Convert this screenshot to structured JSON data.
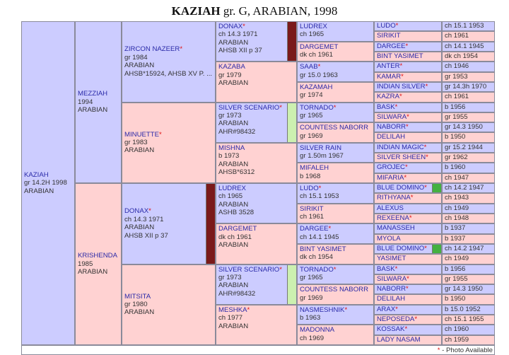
{
  "title": {
    "name": "KAZIAH",
    "detail": "gr. G, ARABIAN, 1998"
  },
  "footer": {
    "mark": "*",
    "text": "- Photo Available"
  },
  "generations": [
    [
      {
        "name": "KAZIAH",
        "lines": [
          "gr 14.2H 1998",
          "ARABIAN"
        ]
      }
    ],
    [
      {
        "name": "MEZZIAH",
        "lines": [
          "1994",
          "ARABIAN"
        ]
      },
      {
        "name": "KRISHENDA",
        "lines": [
          "1985",
          "ARABIAN"
        ]
      }
    ],
    [
      {
        "name": "ZIRCON NAZEER",
        "mark": "*",
        "lines": [
          "gr 1984",
          "ARABIAN",
          "AHSB*15924, AHSB XV P. ..."
        ]
      },
      {
        "name": "MINUETTE",
        "mark": "*",
        "lines": [
          "gr 1983",
          "ARABIAN"
        ]
      },
      {
        "name": "DONAX",
        "mark": "*",
        "lines": [
          "ch 14.3 1971",
          "ARABIAN",
          "AHSB XII p 37"
        ],
        "strip": "#7a1a1a"
      },
      {
        "name": "MITSITA",
        "lines": [
          "gr 1980",
          "ARABIAN"
        ]
      }
    ],
    [
      {
        "name": "DONAX",
        "mark": "*",
        "lines": [
          "ch 14.3 1971",
          "ARABIAN",
          "AHSB XII p 37"
        ],
        "strip": "#7a1a1a"
      },
      {
        "name": "KAZABA",
        "lines": [
          "gr 1979",
          "ARABIAN"
        ]
      },
      {
        "name": "SILVER SCENARIO",
        "mark": "*",
        "lines": [
          "gr 1973",
          "ARABIAN",
          "AHR#98432"
        ],
        "strip": "#ccf0b0"
      },
      {
        "name": "MISHNA",
        "lines": [
          "b 1973",
          "ARABIAN",
          "AHSB*6312"
        ]
      },
      {
        "name": "LUDREX",
        "lines": [
          "ch 1965",
          "ARABIAN",
          "ASHB 3528"
        ]
      },
      {
        "name": "DARGEMET",
        "lines": [
          "dk ch 1961",
          "ARABIAN"
        ]
      },
      {
        "name": "SILVER SCENARIO",
        "mark": "*",
        "lines": [
          "gr 1973",
          "ARABIAN",
          "AHR#98432"
        ],
        "strip": "#ccf0b0"
      },
      {
        "name": "MESHKA",
        "mark": "*",
        "lines": [
          "ch 1977",
          "ARABIAN"
        ]
      }
    ],
    [
      {
        "name": "LUDREX",
        "lines": [
          "ch 1965"
        ]
      },
      {
        "name": "DARGEMET",
        "lines": [
          "dk ch 1961"
        ]
      },
      {
        "name": "SAAB",
        "mark": "*",
        "lines": [
          "gr 15.0 1963"
        ]
      },
      {
        "name": "KAZAMAH",
        "lines": [
          "gr 1974"
        ]
      },
      {
        "name": "TORNADO",
        "mark": "*",
        "lines": [
          "gr 1965"
        ]
      },
      {
        "name": "COUNTESS NABORR",
        "lines": [
          "gr 1969"
        ]
      },
      {
        "name": "SILVER RAIN",
        "lines": [
          "gr 1.50m 1967"
        ]
      },
      {
        "name": "MIFALEH",
        "lines": [
          "b 1968"
        ]
      },
      {
        "name": "LUDO",
        "mark": "*",
        "lines": [
          "ch 15.1 1953"
        ]
      },
      {
        "name": "SIRIKIT",
        "lines": [
          "ch 1961"
        ]
      },
      {
        "name": "DARGEE",
        "mark": "*",
        "lines": [
          "ch 14.1 1945"
        ]
      },
      {
        "name": "BINT YASIMET",
        "lines": [
          "dk ch 1954"
        ]
      },
      {
        "name": "TORNADO",
        "mark": "*",
        "lines": [
          "gr 1965"
        ]
      },
      {
        "name": "COUNTESS NABORR",
        "lines": [
          "gr 1969"
        ]
      },
      {
        "name": "NASMESHNIK",
        "mark": "*",
        "lines": [
          "b 1963"
        ]
      },
      {
        "name": "MADONNA",
        "lines": [
          "ch 1969"
        ]
      }
    ],
    [
      {
        "name": "LUDO",
        "mark": "*",
        "lines": [
          "ch 15.1 1953"
        ]
      },
      {
        "name": "SIRIKIT",
        "lines": [
          "ch 1961"
        ]
      },
      {
        "name": "DARGEE",
        "mark": "*",
        "lines": [
          "ch 14.1 1945"
        ]
      },
      {
        "name": "BINT YASIMET",
        "lines": [
          "dk ch 1954"
        ]
      },
      {
        "name": "ANTER",
        "mark": "*",
        "lines": [
          "ch 1946"
        ]
      },
      {
        "name": "KAMAR",
        "mark": "*",
        "lines": [
          "gr 1953"
        ]
      },
      {
        "name": "INDIAN SILVER",
        "mark": "*",
        "lines": [
          "gr 14.3h 1970"
        ]
      },
      {
        "name": "KAZRA",
        "mark": "*",
        "lines": [
          "ch 1961"
        ]
      },
      {
        "name": "BASK",
        "mark": "*",
        "lines": [
          "b 1956"
        ]
      },
      {
        "name": "SILWARA",
        "mark": "*",
        "lines": [
          "gr 1955"
        ]
      },
      {
        "name": "NABORR",
        "mark": "*",
        "lines": [
          "gr 14.3 1950"
        ]
      },
      {
        "name": "DELILAH",
        "lines": [
          "b 1950"
        ]
      },
      {
        "name": "INDIAN MAGIC",
        "mark": "*",
        "lines": [
          "gr 15.2 1944"
        ]
      },
      {
        "name": "SILVER SHEEN",
        "mark": "*",
        "lines": [
          "gr 1962"
        ]
      },
      {
        "name": "GROJEC",
        "mark": "*",
        "lines": [
          "b 1960"
        ]
      },
      {
        "name": "MIFARIA",
        "mark": "*",
        "lines": [
          "ch 1947"
        ]
      },
      {
        "name": "BLUE DOMINO",
        "mark": "*",
        "lines": [
          "ch 14.2 1947"
        ],
        "strip": "#44b040"
      },
      {
        "name": "RITHYANA",
        "mark": "*",
        "lines": [
          "ch 1943"
        ]
      },
      {
        "name": "ALEXUS",
        "lines": [
          "ch 1949"
        ]
      },
      {
        "name": "REXEENA",
        "mark": "*",
        "lines": [
          "ch 1948"
        ]
      },
      {
        "name": "MANASSEH",
        "lines": [
          "b 1937"
        ]
      },
      {
        "name": "MYOLA",
        "lines": [
          "b 1937"
        ]
      },
      {
        "name": "BLUE DOMINO",
        "mark": "*",
        "lines": [
          "ch 14.2 1947"
        ],
        "strip": "#44b040"
      },
      {
        "name": "YASIMET",
        "lines": [
          "ch 1949"
        ]
      },
      {
        "name": "BASK",
        "mark": "*",
        "lines": [
          "b 1956"
        ]
      },
      {
        "name": "SILWARA",
        "mark": "*",
        "lines": [
          "gr 1955"
        ]
      },
      {
        "name": "NABORR",
        "mark": "*",
        "lines": [
          "gr 14.3 1950"
        ]
      },
      {
        "name": "DELILAH",
        "lines": [
          "b 1950"
        ]
      },
      {
        "name": "ARAX",
        "mark": "*",
        "lines": [
          "b 15.0 1952"
        ]
      },
      {
        "name": "NEPOSEDA",
        "mark": "*",
        "lines": [
          "ch 15.1 1955"
        ]
      },
      {
        "name": "KOSSAK",
        "mark": "*",
        "lines": [
          "ch 1960"
        ]
      },
      {
        "name": "LADY NASAM",
        "lines": [
          "ch 1959"
        ]
      }
    ]
  ]
}
